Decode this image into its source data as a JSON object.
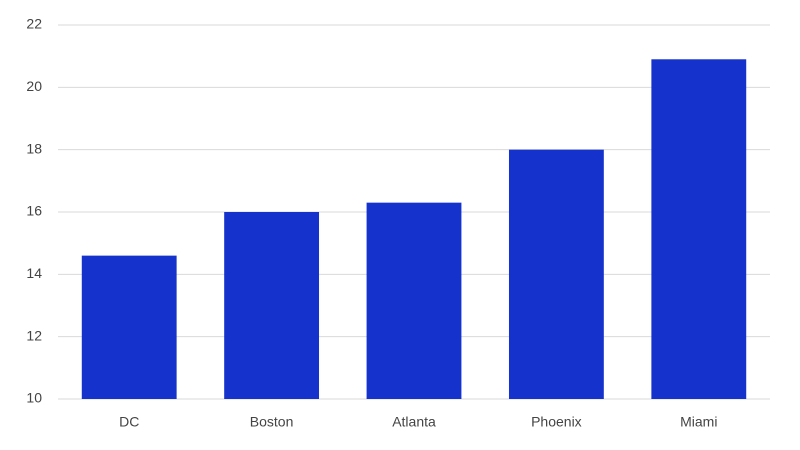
{
  "chart_data": {
    "type": "bar",
    "categories": [
      "DC",
      "Boston",
      "Atlanta",
      "Phoenix",
      "Miami"
    ],
    "values": [
      14.6,
      16.0,
      16.3,
      18.0,
      20.9
    ],
    "color": "#1533cc",
    "ylim": [
      10,
      22
    ],
    "yticks": [
      10,
      12,
      14,
      16,
      18,
      20,
      22
    ],
    "grid": true
  }
}
